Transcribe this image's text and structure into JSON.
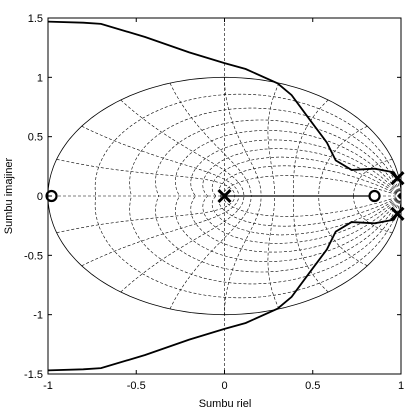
{
  "chart_data": {
    "type": "line",
    "title": "",
    "xlabel": "Sumbu riel",
    "ylabel": "Sumbu imajiner",
    "xlim": [
      -1,
      1
    ],
    "ylim": [
      -1.5,
      1.5
    ],
    "x_ticks": [
      -1,
      -0.5,
      0,
      0.5,
      1
    ],
    "x_tick_labels": [
      "-1",
      "-0.5",
      "0",
      "0.5",
      "1"
    ],
    "y_ticks": [
      1.5,
      1,
      0.5,
      0,
      -0.5,
      -1,
      -1.5
    ],
    "y_tick_labels": [
      "1.5",
      "1",
      "0.5",
      "0",
      "-0.5",
      "-1",
      "-1.5"
    ],
    "grid": "z-plane damping ratio and natural frequency lines (dashed)",
    "unit_circle": true,
    "poles": [
      {
        "re": 0,
        "im": 0
      },
      {
        "re": 0.98,
        "im": 0.15
      },
      {
        "re": 0.98,
        "im": -0.15
      }
    ],
    "zeros": [
      {
        "re": -0.98,
        "im": 0
      },
      {
        "re": 0.85,
        "im": 0
      }
    ],
    "series": [
      {
        "values": [
          {
            "x": 0,
            "y": 0
          },
          {
            "x": 0.85,
            "y": 0
          }
        ]
      },
      {
        "values": [
          {
            "x": -0.98,
            "y": 0
          },
          {
            "x": -1.0,
            "y": 0
          }
        ]
      },
      {
        "values": [
          {
            "x": 0.98,
            "y": 0.15
          },
          {
            "x": 0.96,
            "y": 0.2
          },
          {
            "x": 0.85,
            "y": 0.23
          },
          {
            "x": 0.72,
            "y": 0.22
          },
          {
            "x": 0.63,
            "y": 0.3
          },
          {
            "x": 0.58,
            "y": 0.45
          },
          {
            "x": 0.48,
            "y": 0.65
          },
          {
            "x": 0.38,
            "y": 0.85
          },
          {
            "x": 0.3,
            "y": 0.95
          },
          {
            "x": 0.12,
            "y": 1.07
          },
          {
            "x": 0.0,
            "y": 1.12
          },
          {
            "x": -0.2,
            "y": 1.21
          },
          {
            "x": -0.45,
            "y": 1.34
          },
          {
            "x": -0.7,
            "y": 1.45
          },
          {
            "x": -0.8,
            "y": 1.46
          },
          {
            "x": -1.0,
            "y": 1.47
          }
        ]
      },
      {
        "values": [
          {
            "x": 0.98,
            "y": -0.15
          },
          {
            "x": 0.96,
            "y": -0.2
          },
          {
            "x": 0.85,
            "y": -0.23
          },
          {
            "x": 0.72,
            "y": -0.22
          },
          {
            "x": 0.63,
            "y": -0.3
          },
          {
            "x": 0.58,
            "y": -0.45
          },
          {
            "x": 0.48,
            "y": -0.65
          },
          {
            "x": 0.38,
            "y": -0.85
          },
          {
            "x": 0.3,
            "y": -0.95
          },
          {
            "x": 0.12,
            "y": -1.07
          },
          {
            "x": 0.0,
            "y": -1.12
          },
          {
            "x": -0.2,
            "y": -1.21
          },
          {
            "x": -0.45,
            "y": -1.34
          },
          {
            "x": -0.7,
            "y": -1.45
          },
          {
            "x": -0.8,
            "y": -1.46
          },
          {
            "x": -1.0,
            "y": -1.47
          }
        ]
      }
    ]
  }
}
